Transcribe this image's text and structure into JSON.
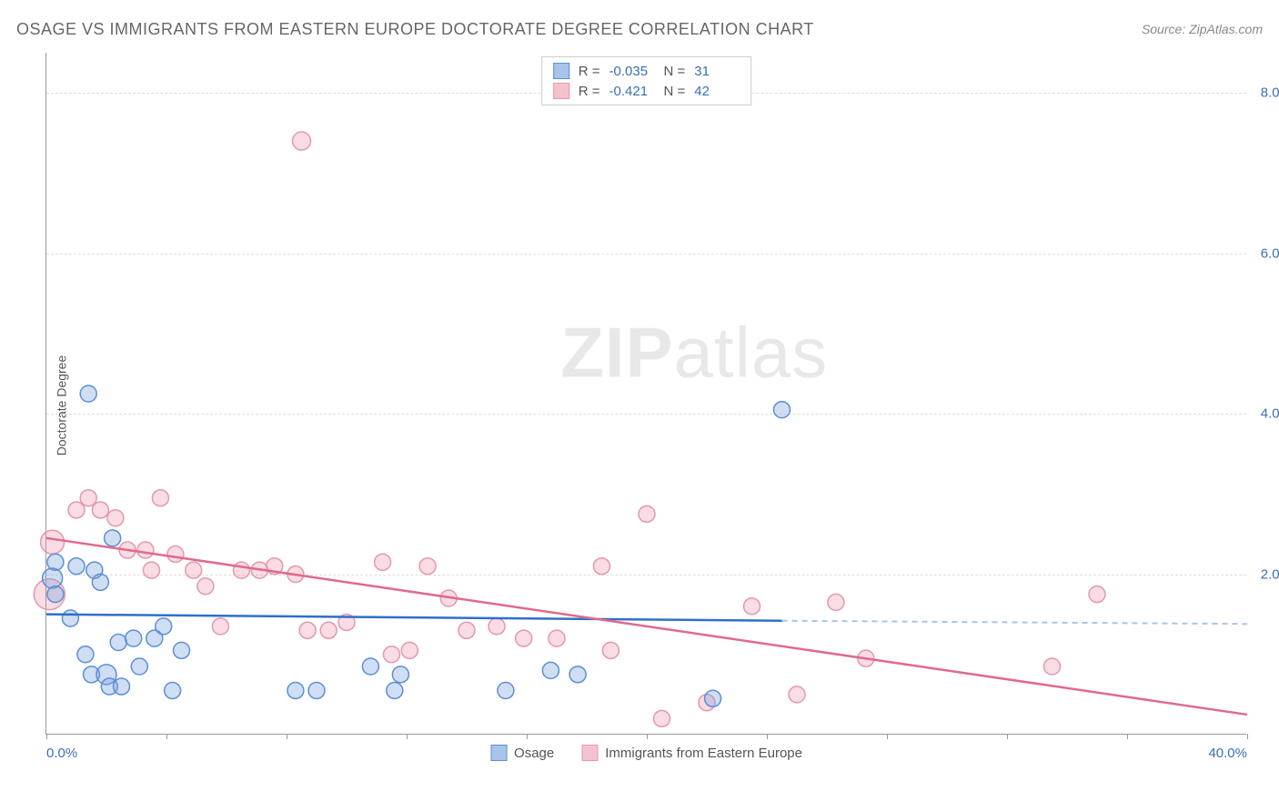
{
  "title": "OSAGE VS IMMIGRANTS FROM EASTERN EUROPE DOCTORATE DEGREE CORRELATION CHART",
  "source": "Source: ZipAtlas.com",
  "ylabel": "Doctorate Degree",
  "watermark": {
    "bold": "ZIP",
    "rest": "atlas"
  },
  "chart": {
    "type": "scatter-with-regression",
    "background_color": "#ffffff",
    "grid_color": "#dddddd",
    "axis_color": "#999999",
    "tick_label_color": "#3b6fb6",
    "tick_fontsize": 15,
    "xlim": [
      0,
      40
    ],
    "ylim": [
      0,
      8.5
    ],
    "x_ticks": [
      0,
      4,
      8,
      12,
      16,
      20,
      24,
      28,
      32,
      36,
      40
    ],
    "x_tick_labels": {
      "0": "0.0%",
      "40": "40.0%"
    },
    "y_gridlines": [
      2,
      4,
      6,
      8
    ],
    "y_tick_labels": {
      "2": "2.0%",
      "4": "4.0%",
      "6": "6.0%",
      "8": "8.0%"
    },
    "series": [
      {
        "name": "Osage",
        "label": "Osage",
        "color_fill": "rgba(120,160,220,0.35)",
        "color_stroke": "#5b8fd6",
        "swatch_fill": "#a8c4ea",
        "swatch_border": "#5b8fd6",
        "marker_radius": 9,
        "R": "-0.035",
        "N": "31",
        "regression": {
          "x1": 0,
          "y1": 1.5,
          "x2": 24.5,
          "y2": 1.42,
          "extend_x2": 40,
          "extend_y2": 1.38,
          "solid_color": "#2f6fc9",
          "dash_color": "#a8c4ea",
          "width": 2.5
        },
        "points": [
          {
            "x": 0.3,
            "y": 2.15,
            "r": 9
          },
          {
            "x": 0.2,
            "y": 1.95,
            "r": 11
          },
          {
            "x": 0.3,
            "y": 1.75,
            "r": 9
          },
          {
            "x": 1.0,
            "y": 2.1,
            "r": 9
          },
          {
            "x": 0.8,
            "y": 1.45,
            "r": 9
          },
          {
            "x": 1.4,
            "y": 4.25,
            "r": 9
          },
          {
            "x": 1.6,
            "y": 2.05,
            "r": 9
          },
          {
            "x": 1.8,
            "y": 1.9,
            "r": 9
          },
          {
            "x": 2.2,
            "y": 2.45,
            "r": 9
          },
          {
            "x": 1.3,
            "y": 1.0,
            "r": 9
          },
          {
            "x": 1.5,
            "y": 0.75,
            "r": 9
          },
          {
            "x": 2.0,
            "y": 0.75,
            "r": 11
          },
          {
            "x": 2.1,
            "y": 0.6,
            "r": 9
          },
          {
            "x": 2.5,
            "y": 0.6,
            "r": 9
          },
          {
            "x": 2.4,
            "y": 1.15,
            "r": 9
          },
          {
            "x": 2.9,
            "y": 1.2,
            "r": 9
          },
          {
            "x": 3.1,
            "y": 0.85,
            "r": 9
          },
          {
            "x": 3.6,
            "y": 1.2,
            "r": 9
          },
          {
            "x": 3.9,
            "y": 1.35,
            "r": 9
          },
          {
            "x": 4.2,
            "y": 0.55,
            "r": 9
          },
          {
            "x": 4.5,
            "y": 1.05,
            "r": 9
          },
          {
            "x": 8.3,
            "y": 0.55,
            "r": 9
          },
          {
            "x": 9.0,
            "y": 0.55,
            "r": 9
          },
          {
            "x": 10.8,
            "y": 0.85,
            "r": 9
          },
          {
            "x": 11.6,
            "y": 0.55,
            "r": 9
          },
          {
            "x": 11.8,
            "y": 0.75,
            "r": 9
          },
          {
            "x": 15.3,
            "y": 0.55,
            "r": 9
          },
          {
            "x": 16.8,
            "y": 0.8,
            "r": 9
          },
          {
            "x": 17.7,
            "y": 0.75,
            "r": 9
          },
          {
            "x": 22.2,
            "y": 0.45,
            "r": 9
          },
          {
            "x": 24.5,
            "y": 4.05,
            "r": 9
          }
        ]
      },
      {
        "name": "Immigrants from Eastern Europe",
        "label": "Immigrants from Eastern Europe",
        "color_fill": "rgba(235,140,165,0.3)",
        "color_stroke": "#e498ad",
        "swatch_fill": "#f4c2ce",
        "swatch_border": "#e498ad",
        "marker_radius": 9,
        "R": "-0.421",
        "N": "42",
        "regression": {
          "x1": 0,
          "y1": 2.45,
          "x2": 40,
          "y2": 0.25,
          "solid_color": "#e06a8a",
          "width": 2.5
        },
        "points": [
          {
            "x": 0.2,
            "y": 2.4,
            "r": 13
          },
          {
            "x": 0.1,
            "y": 1.75,
            "r": 17
          },
          {
            "x": 1.0,
            "y": 2.8,
            "r": 9
          },
          {
            "x": 1.4,
            "y": 2.95,
            "r": 9
          },
          {
            "x": 1.8,
            "y": 2.8,
            "r": 9
          },
          {
            "x": 2.3,
            "y": 2.7,
            "r": 9
          },
          {
            "x": 2.7,
            "y": 2.3,
            "r": 9
          },
          {
            "x": 3.3,
            "y": 2.3,
            "r": 9
          },
          {
            "x": 3.8,
            "y": 2.95,
            "r": 9
          },
          {
            "x": 3.5,
            "y": 2.05,
            "r": 9
          },
          {
            "x": 4.3,
            "y": 2.25,
            "r": 9
          },
          {
            "x": 4.9,
            "y": 2.05,
            "r": 9
          },
          {
            "x": 5.3,
            "y": 1.85,
            "r": 9
          },
          {
            "x": 5.8,
            "y": 1.35,
            "r": 9
          },
          {
            "x": 6.5,
            "y": 2.05,
            "r": 9
          },
          {
            "x": 7.1,
            "y": 2.05,
            "r": 9
          },
          {
            "x": 7.6,
            "y": 2.1,
            "r": 9
          },
          {
            "x": 8.3,
            "y": 2.0,
            "r": 9
          },
          {
            "x": 8.5,
            "y": 7.4,
            "r": 10
          },
          {
            "x": 8.7,
            "y": 1.3,
            "r": 9
          },
          {
            "x": 9.4,
            "y": 1.3,
            "r": 9
          },
          {
            "x": 10.0,
            "y": 1.4,
            "r": 9
          },
          {
            "x": 11.2,
            "y": 2.15,
            "r": 9
          },
          {
            "x": 11.5,
            "y": 1.0,
            "r": 9
          },
          {
            "x": 12.1,
            "y": 1.05,
            "r": 9
          },
          {
            "x": 12.7,
            "y": 2.1,
            "r": 9
          },
          {
            "x": 13.4,
            "y": 1.7,
            "r": 9
          },
          {
            "x": 14.0,
            "y": 1.3,
            "r": 9
          },
          {
            "x": 15.0,
            "y": 1.35,
            "r": 9
          },
          {
            "x": 15.9,
            "y": 1.2,
            "r": 9
          },
          {
            "x": 17.0,
            "y": 1.2,
            "r": 9
          },
          {
            "x": 18.5,
            "y": 2.1,
            "r": 9
          },
          {
            "x": 18.8,
            "y": 1.05,
            "r": 9
          },
          {
            "x": 20.0,
            "y": 2.75,
            "r": 9
          },
          {
            "x": 20.5,
            "y": 0.2,
            "r": 9
          },
          {
            "x": 23.5,
            "y": 1.6,
            "r": 9
          },
          {
            "x": 25.0,
            "y": 0.5,
            "r": 9
          },
          {
            "x": 26.3,
            "y": 1.65,
            "r": 9
          },
          {
            "x": 27.3,
            "y": 0.95,
            "r": 9
          },
          {
            "x": 33.5,
            "y": 0.85,
            "r": 9
          },
          {
            "x": 35.0,
            "y": 1.75,
            "r": 9
          },
          {
            "x": 22.0,
            "y": 0.4,
            "r": 9
          }
        ]
      }
    ]
  },
  "legend_top": {
    "r_label": "R =",
    "n_label": "N ="
  }
}
